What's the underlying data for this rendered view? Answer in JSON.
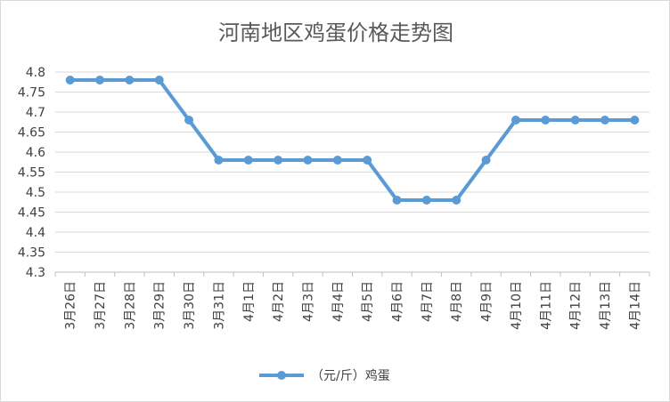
{
  "chart_data": {
    "type": "line",
    "title": "河南地区鸡蛋价格走势图",
    "categories": [
      "3月26日",
      "3月27日",
      "3月28日",
      "3月29日",
      "3月30日",
      "3月31日",
      "4月1日",
      "4月2日",
      "4月3日",
      "4月4日",
      "4月5日",
      "4月6日",
      "4月7日",
      "4月8日",
      "4月9日",
      "4月10日",
      "4月11日",
      "4月12日",
      "4月13日",
      "4月14日"
    ],
    "series": [
      {
        "name": "（元/斤）鸡蛋",
        "values": [
          4.78,
          4.78,
          4.78,
          4.78,
          4.68,
          4.58,
          4.58,
          4.58,
          4.58,
          4.58,
          4.58,
          4.48,
          4.48,
          4.48,
          4.58,
          4.68,
          4.68,
          4.68,
          4.68,
          4.68
        ],
        "color": "#5b9bd5"
      }
    ],
    "yticks": [
      "4.3",
      "4.35",
      "4.4",
      "4.45",
      "4.5",
      "4.55",
      "4.6",
      "4.65",
      "4.7",
      "4.75",
      "4.8"
    ],
    "ylim": [
      4.3,
      4.8
    ],
    "xlabel": "",
    "ylabel": "",
    "grid": true,
    "legend_position": "bottom"
  }
}
